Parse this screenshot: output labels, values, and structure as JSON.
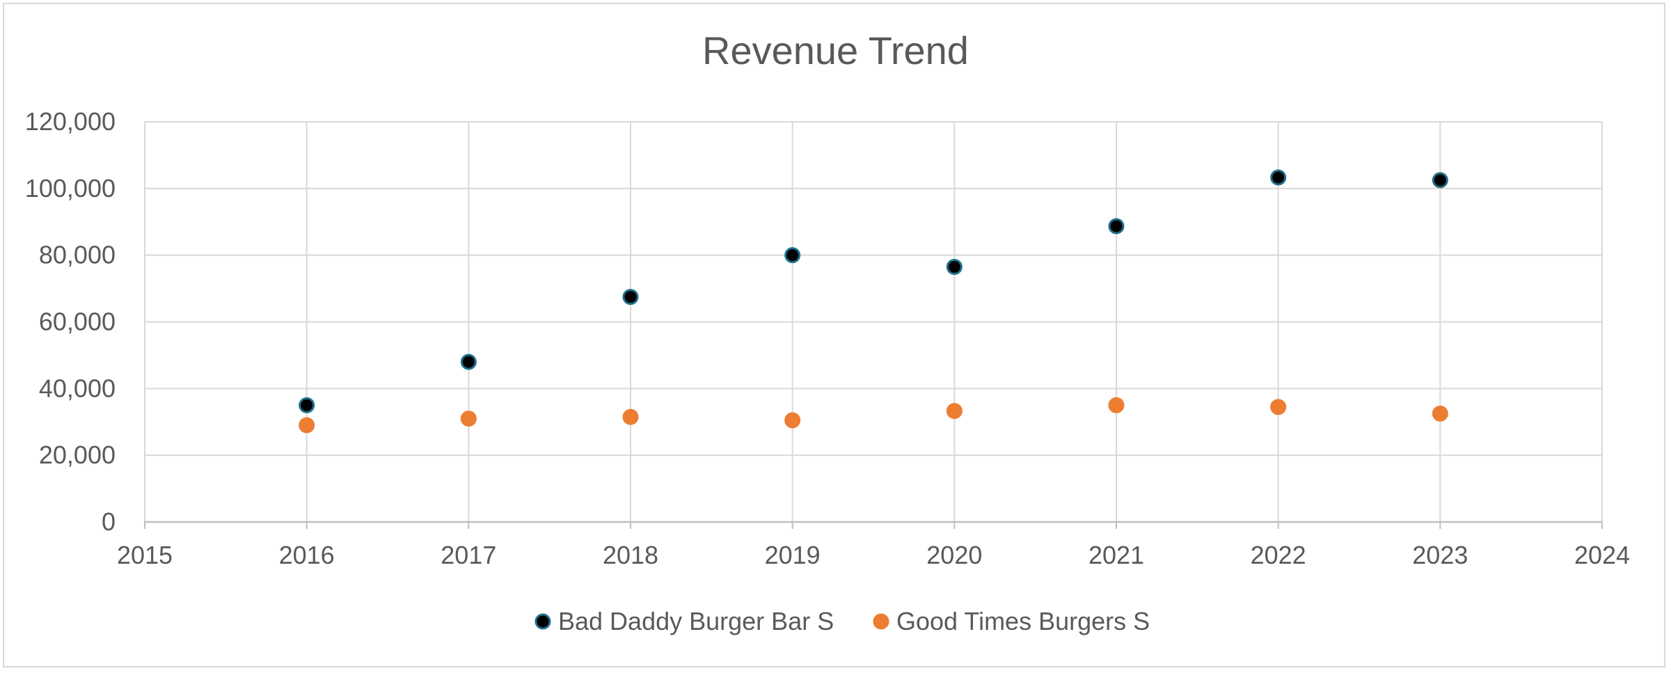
{
  "chart_data": {
    "type": "scatter",
    "title": "Revenue Trend",
    "xlabel": "",
    "ylabel": "",
    "xlim": [
      2015,
      2024
    ],
    "ylim": [
      0,
      120000
    ],
    "x_ticks": [
      "2015",
      "2016",
      "2017",
      "2018",
      "2019",
      "2020",
      "2021",
      "2022",
      "2023",
      "2024"
    ],
    "y_ticks": [
      "0",
      "20,000",
      "40,000",
      "60,000",
      "80,000",
      "100,000",
      "120,000"
    ],
    "x_tick_values": [
      2015,
      2016,
      2017,
      2018,
      2019,
      2020,
      2021,
      2022,
      2023,
      2024
    ],
    "y_tick_values": [
      0,
      20000,
      40000,
      60000,
      80000,
      100000,
      120000
    ],
    "grid": true,
    "legend_position": "bottom",
    "series": [
      {
        "name": "Bad Daddy Burger Bar S",
        "color": "#000000",
        "edge_color": "#1f6f8b",
        "x": [
          2016,
          2017,
          2018,
          2019,
          2020,
          2021,
          2022,
          2023
        ],
        "values": [
          35000,
          48000,
          67500,
          80000,
          76500,
          88700,
          103300,
          102500
        ]
      },
      {
        "name": "Good Times Burgers S",
        "color": "#ed7d31",
        "edge_color": "#ed7d31",
        "x": [
          2016,
          2017,
          2018,
          2019,
          2020,
          2021,
          2022,
          2023
        ],
        "values": [
          29000,
          31000,
          31500,
          30500,
          33300,
          35000,
          34500,
          32500
        ]
      }
    ]
  }
}
